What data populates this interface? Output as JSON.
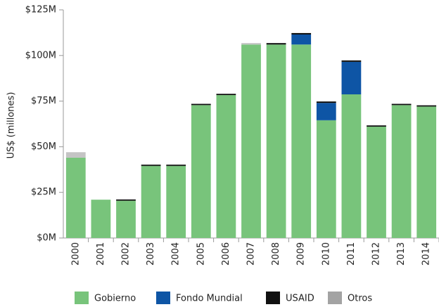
{
  "chart_data": {
    "type": "stacked-bar",
    "y_label": "US$ (millones)",
    "categories": [
      "2000",
      "2001",
      "2002",
      "2003",
      "2004",
      "2005",
      "2006",
      "2007",
      "2008",
      "2009",
      "2010",
      "2011",
      "2012",
      "2013",
      "2014"
    ],
    "series": [
      {
        "name": "Gobierno",
        "color": "#78c47b",
        "values": [
          44,
          21,
          20.4,
          39.5,
          39.5,
          72.8,
          78.3,
          106,
          106,
          106,
          64.5,
          78.7,
          61,
          72.8,
          72
        ]
      },
      {
        "name": "Fondo Mundial",
        "color": "#0e55a5",
        "values": [
          0,
          0,
          0,
          0,
          0,
          0,
          0,
          0,
          0,
          5.5,
          9.5,
          17.8,
          0,
          0,
          0
        ]
      },
      {
        "name": "USAID",
        "color": "#111111",
        "values": [
          0,
          0,
          0.7,
          0.7,
          0.7,
          0.7,
          0.7,
          0,
          0.8,
          0.8,
          0.8,
          0.8,
          0.7,
          0.7,
          0.7
        ]
      },
      {
        "name": "Otros",
        "color": "#c4c4c4",
        "values": [
          3,
          0,
          0,
          0,
          0,
          0,
          0,
          0.8,
          0,
          0,
          0,
          0,
          0,
          0,
          0
        ]
      }
    ],
    "ylim": [
      0,
      125
    ],
    "yticks": [
      {
        "value": 0,
        "label": "$0M"
      },
      {
        "value": 25,
        "label": "$25M"
      },
      {
        "value": 50,
        "label": "$50M"
      },
      {
        "value": 75,
        "label": "$75M"
      },
      {
        "value": 100,
        "label": "$100M"
      },
      {
        "value": 125,
        "label": "$125M"
      }
    ],
    "legend": "bottom"
  }
}
